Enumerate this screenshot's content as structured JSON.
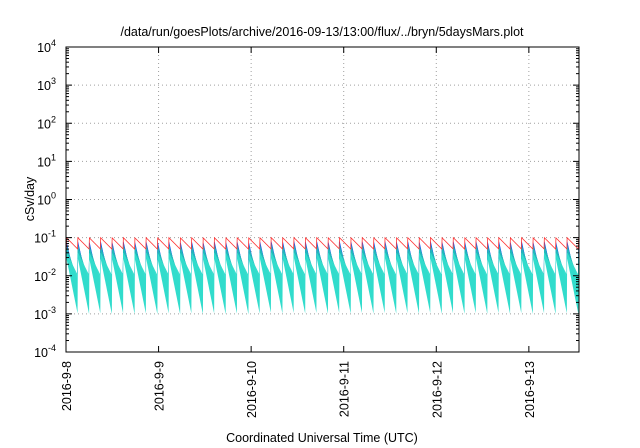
{
  "chart_data": {
    "type": "area",
    "title": "/data/run/goesPlots/archive/2016-09-13/13:00/flux/../bryn/5daysMars.plot",
    "xlabel": "Coordinated Universal Time (UTC)",
    "ylabel": "cSv/day",
    "y_scale": "log",
    "ylim": [
      0.0001,
      10000
    ],
    "xlim": [
      "2016-09-08T00:00",
      "2016-09-13T13:00"
    ],
    "grid": true,
    "x_ticks": [
      {
        "value": "2016-09-08T00:00",
        "label": "2016-9-8"
      },
      {
        "value": "2016-09-09T00:00",
        "label": "2016-9-9"
      },
      {
        "value": "2016-09-10T00:00",
        "label": "2016-9-10"
      },
      {
        "value": "2016-09-11T00:00",
        "label": "2016-9-11"
      },
      {
        "value": "2016-09-12T00:00",
        "label": "2016-9-12"
      },
      {
        "value": "2016-09-13T00:00",
        "label": "2016-9-13"
      }
    ],
    "y_ticks": [
      {
        "value": 0.0001,
        "base": "10",
        "exp": "-4"
      },
      {
        "value": 0.001,
        "base": "10",
        "exp": "-3"
      },
      {
        "value": 0.01,
        "base": "10",
        "exp": "-2"
      },
      {
        "value": 0.1,
        "base": "10",
        "exp": "-1"
      },
      {
        "value": 1,
        "base": "10",
        "exp": "0"
      },
      {
        "value": 10,
        "base": "10",
        "exp": "1"
      },
      {
        "value": 100,
        "base": "10",
        "exp": "2"
      },
      {
        "value": 1000,
        "base": "10",
        "exp": "3"
      },
      {
        "value": 10000,
        "base": "10",
        "exp": "4"
      }
    ],
    "oscillation": {
      "pattern": "sawtooth",
      "period_hours": 2.95,
      "phase_hours": 0.1
    },
    "bands": [
      {
        "color": "#ff00ff",
        "peak": 0.03,
        "trough": 0.001
      },
      {
        "color": "#cc33cc",
        "peak": 0.04,
        "trough": 0.0016
      },
      {
        "color": "#990099",
        "peak": 0.05,
        "trough": 0.0022
      },
      {
        "color": "#dd3377",
        "peak": 0.06,
        "trough": 0.0028
      },
      {
        "color": "#2244ff",
        "peak": 0.08,
        "trough": 0.0035
      },
      {
        "color": "#1c7fd0",
        "peak": 0.07,
        "trough": 0.005
      },
      {
        "color": "#22bbbb",
        "peak": 0.06,
        "trough": 0.007
      },
      {
        "color": "#33ddcc",
        "peak": 0.04,
        "trough": 0.01
      }
    ],
    "upper_envelope": {
      "color": "#ff3333",
      "peak": 0.1,
      "trough": 0.05
    },
    "colors": {
      "axis": "#000000",
      "grid": "#a0a0a0",
      "background": "#ffffff"
    }
  }
}
